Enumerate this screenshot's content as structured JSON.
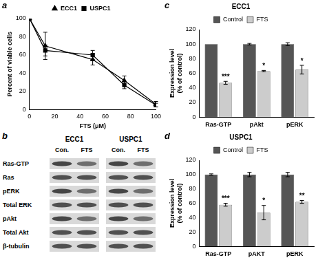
{
  "chart_data": [
    {
      "panel": "a",
      "type": "line",
      "x_label": "FTS (μM)",
      "y_label": "Percent of viable cells",
      "xlim": [
        0,
        100
      ],
      "xticks": [
        0,
        20,
        40,
        60,
        80,
        100
      ],
      "ylim": [
        0,
        100
      ],
      "yticks": [
        0,
        20,
        40,
        60,
        80,
        100
      ],
      "grid": false,
      "legend": "top",
      "series": [
        {
          "name": "ECC1",
          "color": "#000000",
          "marker": "triangle",
          "x": [
            0,
            12.5,
            50,
            75,
            100
          ],
          "values": [
            100,
            70,
            55,
            32,
            6
          ],
          "errors": [
            0,
            15,
            6,
            5,
            3
          ]
        },
        {
          "name": "USPC1",
          "color": "#000000",
          "marker": "square",
          "x": [
            0,
            12.5,
            50,
            75,
            100
          ],
          "values": [
            100,
            65,
            60,
            27,
            5
          ],
          "errors": [
            0,
            6,
            5,
            4,
            2
          ]
        }
      ]
    },
    {
      "panel": "c",
      "type": "bar",
      "title": "ECC1",
      "y_label": [
        "Expression level",
        "(% of control)"
      ],
      "categories": [
        "Ras-GTP",
        "pAkt",
        "pERK"
      ],
      "ylim": [
        0,
        120
      ],
      "yticks": [
        0,
        20,
        40,
        60,
        80,
        100,
        120
      ],
      "grid": false,
      "legend": "top",
      "series": [
        {
          "name": "Control",
          "color": "#555555",
          "values": [
            100,
            100,
            100
          ],
          "errors": [
            0,
            1,
            2
          ]
        },
        {
          "name": "FTS",
          "color": "#cccccc",
          "values": [
            47,
            63,
            65
          ],
          "errors": [
            2,
            1,
            6
          ],
          "significance": [
            "***",
            "*",
            "*"
          ]
        }
      ]
    },
    {
      "panel": "d",
      "type": "bar",
      "title": "USPC1",
      "y_label": [
        "Expression level",
        "(% of control)"
      ],
      "categories": [
        "Ras-GTP",
        "pAKT",
        "pERK"
      ],
      "ylim": [
        0,
        120
      ],
      "yticks": [
        0,
        20,
        40,
        60,
        80,
        100,
        120
      ],
      "grid": false,
      "legend": "top",
      "series": [
        {
          "name": "Control",
          "color": "#555555",
          "values": [
            100,
            100,
            100
          ],
          "errors": [
            1,
            3,
            3
          ]
        },
        {
          "name": "FTS",
          "color": "#cccccc",
          "values": [
            58,
            47,
            62
          ],
          "errors": [
            2,
            10,
            2
          ],
          "significance": [
            "***",
            "*",
            "**"
          ]
        }
      ]
    }
  ],
  "blot": {
    "panel": "b",
    "groups": [
      {
        "name": "ECC1",
        "lanes": [
          "Con.",
          "FTS"
        ]
      },
      {
        "name": "USPC1",
        "lanes": [
          "Con.",
          "FTS"
        ]
      }
    ],
    "rows": [
      "Ras-GTP",
      "Ras",
      "pERK",
      "Total ERK",
      "pAkt",
      "Total Akt",
      "β-tubulin"
    ]
  }
}
